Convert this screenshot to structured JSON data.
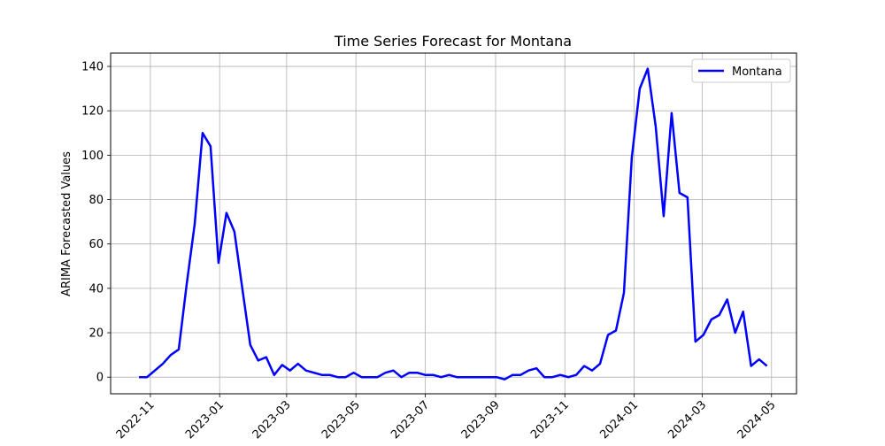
{
  "chart_data": {
    "type": "line",
    "title": "Time Series Forecast for Montana",
    "xlabel": "",
    "ylabel": "ARIMA Forecasted Values",
    "x_ticks": [
      "2022-11",
      "2023-01",
      "2023-03",
      "2023-05",
      "2023-07",
      "2023-09",
      "2023-11",
      "2024-01",
      "2024-03",
      "2024-05"
    ],
    "y_ticks": [
      0,
      20,
      40,
      60,
      80,
      100,
      120,
      140
    ],
    "xlim": [
      "2022-09-27",
      "2024-05-23"
    ],
    "ylim": [
      -7.5,
      146
    ],
    "grid": true,
    "legend_position": "top-right",
    "series": [
      {
        "name": "Montana",
        "color": "#0000ff",
        "x": [
          "2022-10-22",
          "2022-10-29",
          "2022-11-05",
          "2022-11-12",
          "2022-11-19",
          "2022-11-26",
          "2022-12-03",
          "2022-12-10",
          "2022-12-17",
          "2022-12-24",
          "2022-12-31",
          "2023-01-07",
          "2023-01-14",
          "2023-01-21",
          "2023-01-28",
          "2023-02-04",
          "2023-02-11",
          "2023-02-18",
          "2023-02-25",
          "2023-03-04",
          "2023-03-11",
          "2023-03-18",
          "2023-03-25",
          "2023-04-01",
          "2023-04-08",
          "2023-04-15",
          "2023-04-22",
          "2023-04-29",
          "2023-05-06",
          "2023-05-13",
          "2023-05-20",
          "2023-05-27",
          "2023-06-03",
          "2023-06-10",
          "2023-06-17",
          "2023-06-24",
          "2023-07-01",
          "2023-07-08",
          "2023-07-15",
          "2023-07-22",
          "2023-07-29",
          "2023-08-05",
          "2023-08-12",
          "2023-08-19",
          "2023-08-26",
          "2023-09-02",
          "2023-09-09",
          "2023-09-16",
          "2023-09-23",
          "2023-09-30",
          "2023-10-07",
          "2023-10-14",
          "2023-10-21",
          "2023-10-28",
          "2023-11-04",
          "2023-11-11",
          "2023-11-18",
          "2023-11-25",
          "2023-12-02",
          "2023-12-09",
          "2023-12-16",
          "2023-12-23",
          "2023-12-30",
          "2024-01-06",
          "2024-01-13",
          "2024-01-20",
          "2024-01-27",
          "2024-02-03",
          "2024-02-10",
          "2024-02-17",
          "2024-02-24",
          "2024-03-02",
          "2024-03-09",
          "2024-03-16",
          "2024-03-23",
          "2024-03-30",
          "2024-04-06",
          "2024-04-13",
          "2024-04-20",
          "2024-04-27"
        ],
        "values": [
          0,
          0,
          3,
          6,
          10,
          12.5,
          42,
          69,
          110,
          104,
          51.5,
          74,
          65.5,
          40,
          14.5,
          7.5,
          9,
          1,
          5.5,
          3,
          6,
          3,
          2,
          1,
          1,
          0,
          0,
          2,
          0,
          0,
          0,
          2,
          3,
          0,
          2,
          2,
          1,
          1,
          0,
          1,
          0,
          0,
          0,
          0,
          0,
          0,
          -1,
          1,
          1,
          3,
          4,
          0,
          0,
          1,
          0,
          1,
          5,
          3,
          6,
          19,
          21,
          38,
          99,
          130,
          139,
          113,
          72.5,
          119,
          83,
          81,
          16,
          19,
          26,
          28,
          35,
          20,
          29.5,
          5,
          8,
          5
        ]
      }
    ]
  }
}
